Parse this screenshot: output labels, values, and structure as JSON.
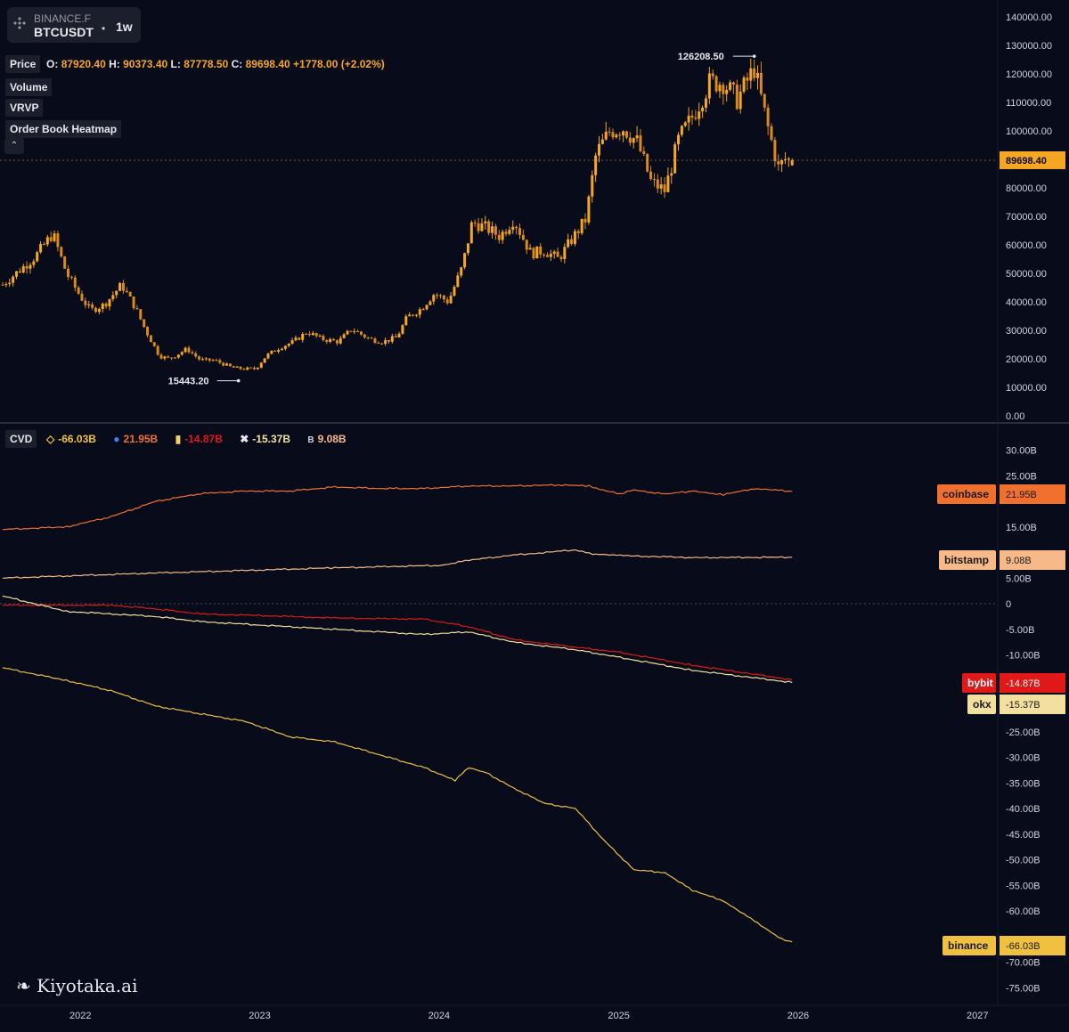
{
  "header": {
    "exchange": "BINANCE.F",
    "symbol": "BTCUSDT",
    "separator": "•",
    "timeframe": "1w"
  },
  "indicators": {
    "price_label": "Price",
    "volume_label": "Volume",
    "vrvp_label": "VRVP",
    "heatmap_label": "Order Book Heatmap",
    "collapse_icon": "chevron-up-icon"
  },
  "ohlc": {
    "o_key": "O:",
    "o": "87920.40",
    "h_key": "H:",
    "h": "90373.40",
    "l_key": "L:",
    "l": "87778.50",
    "c_key": "C:",
    "c": "89698.40",
    "change": "+1778.00",
    "change_pct": "(+2.02%)"
  },
  "cvd": {
    "label": "CVD",
    "binance": "-66.03B",
    "coinbase": "21.95B",
    "bybit": "-14.87B",
    "okx": "-15.37B",
    "bitstamp": "9.08B"
  },
  "watermark": "Kiyotaka.ai",
  "colors": {
    "background": "#080b1a",
    "candle_up": "#f5a623",
    "candle_down": "#f5a623",
    "binance": "#f0c040",
    "coinbase": "#f07030",
    "bybit": "#e01818",
    "okx": "#f3e0a0",
    "bitstamp": "#f7b98a"
  },
  "chart_data": [
    {
      "type": "candlestick",
      "title": "BTCUSDT 1w",
      "x_ticks": [
        "2022",
        "2023",
        "2024",
        "2025",
        "2026",
        "2027"
      ],
      "y_ticks": [
        "140000.00",
        "130000.00",
        "120000.00",
        "110000.00",
        "100000.00",
        "90000.00",
        "80000.00",
        "70000.00",
        "60000.00",
        "50000.00",
        "40000.00",
        "30000.00",
        "20000.00",
        "10000.00",
        "0.00"
      ],
      "ylim": [
        0,
        140000
      ],
      "last_price_label": "89698.40",
      "last_price": 89698.4,
      "high_annotation": {
        "label": "126208.50",
        "date": "2025-10-06",
        "value": 126208.5
      },
      "low_annotation": {
        "label": "15443.20",
        "date": "2022-11-21",
        "value": 15443.2
      },
      "series": [
        {
          "name": "Price",
          "points": [
            [
              "2021-09-06",
              46000
            ],
            [
              "2021-10-04",
              56000
            ],
            [
              "2021-11-08",
              64000
            ],
            [
              "2021-12-06",
              50000
            ],
            [
              "2022-01-03",
              42000
            ],
            [
              "2022-01-24",
              37000
            ],
            [
              "2022-02-21",
              39000
            ],
            [
              "2022-03-28",
              46000
            ],
            [
              "2022-04-25",
              38000
            ],
            [
              "2022-05-16",
              30000
            ],
            [
              "2022-06-13",
              21000
            ],
            [
              "2022-07-04",
              20000
            ],
            [
              "2022-08-08",
              23500
            ],
            [
              "2022-09-05",
              19500
            ],
            [
              "2022-10-03",
              19500
            ],
            [
              "2022-11-07",
              17000
            ],
            [
              "2022-11-28",
              16500
            ],
            [
              "2022-12-26",
              16500
            ],
            [
              "2023-01-16",
              21000
            ],
            [
              "2023-02-13",
              24000
            ],
            [
              "2023-03-13",
              26000
            ],
            [
              "2023-04-10",
              29500
            ],
            [
              "2023-05-08",
              27000
            ],
            [
              "2023-06-12",
              26000
            ],
            [
              "2023-07-10",
              30500
            ],
            [
              "2023-08-14",
              27000
            ],
            [
              "2023-09-11",
              26000
            ],
            [
              "2023-10-09",
              27500
            ],
            [
              "2023-10-30",
              34500
            ],
            [
              "2023-11-27",
              37500
            ],
            [
              "2023-12-25",
              43000
            ],
            [
              "2024-01-22",
              40000
            ],
            [
              "2024-02-19",
              52000
            ],
            [
              "2024-03-11",
              68000
            ],
            [
              "2024-04-08",
              66000
            ],
            [
              "2024-05-06",
              63000
            ],
            [
              "2024-06-03",
              69000
            ],
            [
              "2024-07-08",
              57000
            ],
            [
              "2024-08-05",
              58000
            ],
            [
              "2024-09-02",
              55000
            ],
            [
              "2024-09-30",
              62000
            ],
            [
              "2024-10-28",
              69000
            ],
            [
              "2024-11-18",
              92000
            ],
            [
              "2024-12-16",
              100000
            ],
            [
              "2025-01-13",
              101000
            ],
            [
              "2025-02-10",
              96000
            ],
            [
              "2025-03-10",
              82000
            ],
            [
              "2025-04-07",
              79000
            ],
            [
              "2025-05-05",
              97000
            ],
            [
              "2025-06-02",
              105000
            ],
            [
              "2025-07-07",
              117000
            ],
            [
              "2025-08-04",
              117000
            ],
            [
              "2025-09-01",
              111000
            ],
            [
              "2025-10-06",
              122000
            ],
            [
              "2025-11-03",
              101000
            ],
            [
              "2025-11-24",
              87000
            ],
            [
              "2025-12-08",
              90000
            ],
            [
              "2025-12-22",
              89698.4
            ]
          ]
        }
      ]
    },
    {
      "type": "line",
      "title": "CVD",
      "x_ticks": [
        "2022",
        "2023",
        "2024",
        "2025",
        "2026",
        "2027"
      ],
      "y_ticks": [
        "30.00B",
        "25.00B",
        "15.00B",
        "5.00B",
        "0",
        "-5.00B",
        "-10.00B",
        "-25.00B",
        "-30.00B",
        "-35.00B",
        "-40.00B",
        "-45.00B",
        "-50.00B",
        "-55.00B",
        "-60.00B",
        "-70.00B",
        "-75.00B"
      ],
      "ylim": [
        -77,
        33
      ],
      "series": [
        {
          "name": "coinbase",
          "end_label": "21.95B",
          "points": [
            [
              "2021-09-06",
              14.5
            ],
            [
              "2021-12-06",
              15
            ],
            [
              "2022-03-07",
              17
            ],
            [
              "2022-06-06",
              20
            ],
            [
              "2022-09-05",
              21.5
            ],
            [
              "2022-12-05",
              22
            ],
            [
              "2023-03-06",
              22
            ],
            [
              "2023-06-05",
              22.8
            ],
            [
              "2023-09-04",
              22.5
            ],
            [
              "2023-12-04",
              22.5
            ],
            [
              "2024-03-04",
              23
            ],
            [
              "2024-06-03",
              23
            ],
            [
              "2024-09-02",
              23.2
            ],
            [
              "2024-11-04",
              23
            ],
            [
              "2024-12-09",
              22
            ],
            [
              "2025-01-06",
              21.5
            ],
            [
              "2025-02-03",
              22.2
            ],
            [
              "2025-04-07",
              21.4
            ],
            [
              "2025-06-02",
              22
            ],
            [
              "2025-08-04",
              21.3
            ],
            [
              "2025-10-06",
              22.5
            ],
            [
              "2025-12-22",
              21.95
            ]
          ]
        },
        {
          "name": "bitstamp",
          "end_label": "9.08B",
          "points": [
            [
              "2021-09-06",
              5
            ],
            [
              "2022-06-06",
              6
            ],
            [
              "2023-06-05",
              7
            ],
            [
              "2024-01-08",
              7.5
            ],
            [
              "2024-03-04",
              8.5
            ],
            [
              "2024-06-03",
              9.5
            ],
            [
              "2024-10-07",
              10.5
            ],
            [
              "2024-11-04",
              9.8
            ],
            [
              "2025-01-06",
              9.4
            ],
            [
              "2025-06-02",
              9
            ],
            [
              "2025-12-22",
              9.08
            ]
          ]
        },
        {
          "name": "bybit",
          "end_label": "-14.87B",
          "points": [
            [
              "2021-09-06",
              -0.3
            ],
            [
              "2022-03-07",
              -0.3
            ],
            [
              "2022-06-06",
              -1
            ],
            [
              "2022-09-05",
              -2
            ],
            [
              "2023-01-02",
              -2.3
            ],
            [
              "2023-06-05",
              -2.8
            ],
            [
              "2023-12-04",
              -3
            ],
            [
              "2024-03-04",
              -4.5
            ],
            [
              "2024-06-03",
              -7
            ],
            [
              "2024-10-07",
              -8.5
            ],
            [
              "2025-01-06",
              -9.5
            ],
            [
              "2025-06-02",
              -12
            ],
            [
              "2025-12-22",
              -14.87
            ]
          ]
        },
        {
          "name": "okx",
          "end_label": "-15.37B",
          "points": [
            [
              "2021-09-06",
              1.5
            ],
            [
              "2021-12-06",
              -1.5
            ],
            [
              "2022-06-06",
              -2.5
            ],
            [
              "2022-09-05",
              -3.5
            ],
            [
              "2023-03-06",
              -4.5
            ],
            [
              "2023-06-05",
              -5
            ],
            [
              "2023-12-04",
              -6
            ],
            [
              "2024-03-04",
              -5.5
            ],
            [
              "2024-06-03",
              -7.5
            ],
            [
              "2024-10-07",
              -9
            ],
            [
              "2025-01-06",
              -10.5
            ],
            [
              "2025-06-02",
              -13
            ],
            [
              "2025-12-22",
              -15.37
            ]
          ]
        },
        {
          "name": "binance",
          "end_label": "-66.03B",
          "points": [
            [
              "2021-09-06",
              -12.5
            ],
            [
              "2021-12-06",
              -15
            ],
            [
              "2022-03-07",
              -17
            ],
            [
              "2022-06-06",
              -20
            ],
            [
              "2022-09-05",
              -21.5
            ],
            [
              "2022-12-05",
              -23
            ],
            [
              "2023-03-06",
              -26
            ],
            [
              "2023-06-05",
              -27
            ],
            [
              "2023-09-04",
              -29.5
            ],
            [
              "2023-12-04",
              -32
            ],
            [
              "2024-02-05",
              -34.5
            ],
            [
              "2024-03-04",
              -32
            ],
            [
              "2024-04-08",
              -33
            ],
            [
              "2024-06-03",
              -36
            ],
            [
              "2024-08-05",
              -39
            ],
            [
              "2024-10-07",
              -40
            ],
            [
              "2024-12-02",
              -46
            ],
            [
              "2025-02-03",
              -52
            ],
            [
              "2025-04-07",
              -52.5
            ],
            [
              "2025-06-02",
              -56
            ],
            [
              "2025-08-04",
              -58
            ],
            [
              "2025-10-06",
              -62
            ],
            [
              "2025-12-01",
              -65.5
            ],
            [
              "2025-12-22",
              -66.03
            ]
          ]
        }
      ]
    }
  ]
}
